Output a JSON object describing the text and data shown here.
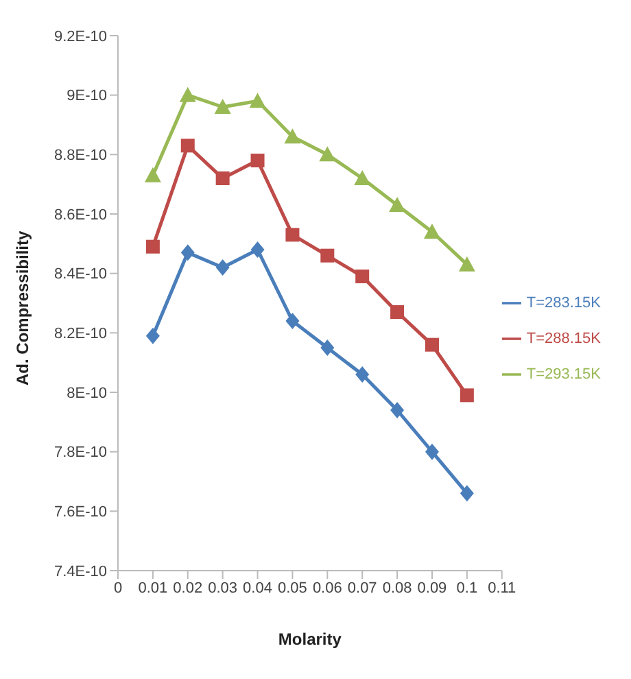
{
  "chart_data": {
    "type": "line",
    "xlabel": "Molarity",
    "ylabel": "Ad. Compressibility",
    "x": [
      0.01,
      0.02,
      0.03,
      0.04,
      0.05,
      0.06,
      0.07,
      0.08,
      0.09,
      0.1
    ],
    "series": [
      {
        "name": "T=283.15K",
        "color": "#4a7ebb",
        "marker": "diamond",
        "values": [
          8.19e-10,
          8.47e-10,
          8.42e-10,
          8.48e-10,
          8.24e-10,
          8.15e-10,
          8.06e-10,
          7.94e-10,
          7.8e-10,
          7.66e-10
        ]
      },
      {
        "name": "T=288.15K",
        "color": "#be4b48",
        "marker": "square",
        "values": [
          8.49e-10,
          8.83e-10,
          8.72e-10,
          8.78e-10,
          8.53e-10,
          8.46e-10,
          8.39e-10,
          8.27e-10,
          8.16e-10,
          7.99e-10
        ]
      },
      {
        "name": "T=293.15K",
        "color": "#98b954",
        "marker": "triangle",
        "values": [
          8.73e-10,
          9e-10,
          8.96e-10,
          8.98e-10,
          8.86e-10,
          8.8e-10,
          8.72e-10,
          8.63e-10,
          8.54e-10,
          8.43e-10
        ]
      }
    ],
    "xlim": [
      0,
      0.11
    ],
    "xticks": [
      0,
      0.01,
      0.02,
      0.03,
      0.04,
      0.05,
      0.06,
      0.07,
      0.08,
      0.09,
      0.1,
      0.11
    ],
    "ylim": [
      7.4e-10,
      9.2e-10
    ],
    "yticks": [
      {
        "value": 7.4e-10,
        "label": "7.4E-10"
      },
      {
        "value": 7.6e-10,
        "label": "7.6E-10"
      },
      {
        "value": 7.8e-10,
        "label": "7.8E-10"
      },
      {
        "value": 8e-10,
        "label": "8E-10"
      },
      {
        "value": 8.2e-10,
        "label": "8.2E-10"
      },
      {
        "value": 8.4e-10,
        "label": "8.4E-10"
      },
      {
        "value": 8.6e-10,
        "label": "8.6E-10"
      },
      {
        "value": 8.8e-10,
        "label": "8.8E-10"
      },
      {
        "value": 9e-10,
        "label": "9E-10"
      },
      {
        "value": 9.2e-10,
        "label": "9.2E-10"
      }
    ],
    "grid": false,
    "legend": "right",
    "line_style": "solid"
  }
}
